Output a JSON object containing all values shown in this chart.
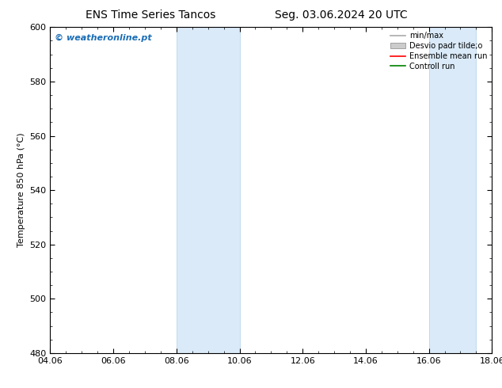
{
  "title_left": "ENS Time Series Tancos",
  "title_right": "Seg. 03.06.2024 20 UTC",
  "ylabel": "Temperature 850 hPa (°C)",
  "ylim": [
    480,
    600
  ],
  "yticks": [
    480,
    500,
    520,
    540,
    560,
    580,
    600
  ],
  "xlim_start": 0,
  "xlim_end": 14,
  "xtick_labels": [
    "04.06",
    "06.06",
    "08.06",
    "10.06",
    "12.06",
    "14.06",
    "16.06",
    "18.06"
  ],
  "xtick_positions": [
    0,
    2,
    4,
    6,
    8,
    10,
    12,
    14
  ],
  "shaded_regions": [
    {
      "xstart": 4,
      "xend": 6,
      "color": "#daeaf8",
      "edge_color": "#b0cfe8"
    },
    {
      "xstart": 12,
      "xend": 13.5,
      "color": "#daeaf8",
      "edge_color": "#b0cfe8"
    }
  ],
  "watermark_text": "© weatheronline.pt",
  "watermark_color": "#1a6db5",
  "legend_entries": [
    {
      "label": "min/max",
      "color": "#aaaaaa",
      "lw": 1.2,
      "style": "line"
    },
    {
      "label": "Desvio padr tilde;o",
      "color": "#cccccc",
      "lw": 5,
      "style": "band"
    },
    {
      "label": "Ensemble mean run",
      "color": "red",
      "lw": 1.2,
      "style": "line"
    },
    {
      "label": "Controll run",
      "color": "green",
      "lw": 1.2,
      "style": "line"
    }
  ],
  "bg_color": "#ffffff",
  "plot_bg_color": "#ffffff",
  "border_color": "#000000",
  "title_fontsize": 10,
  "tick_fontsize": 8,
  "ylabel_fontsize": 8,
  "watermark_fontsize": 8,
  "legend_fontsize": 7
}
